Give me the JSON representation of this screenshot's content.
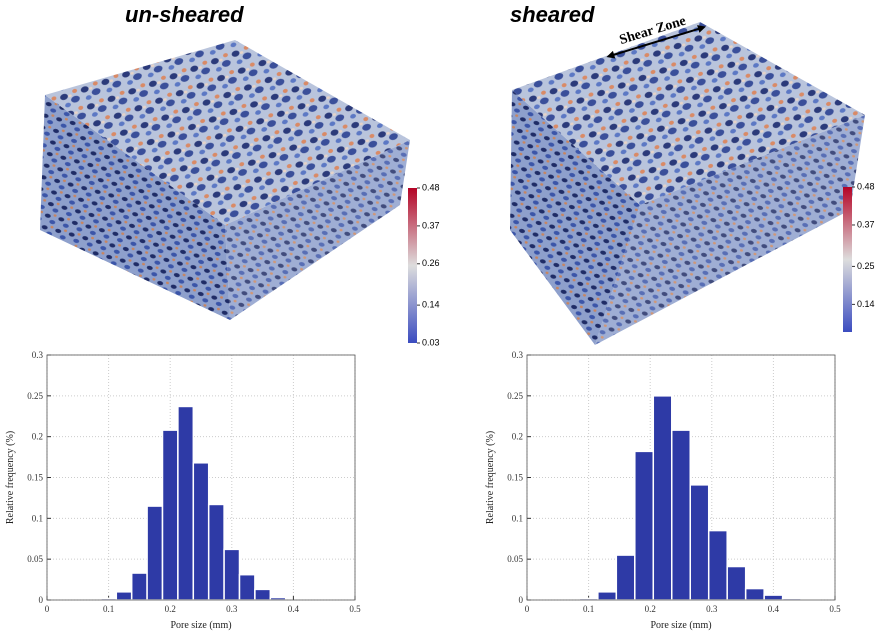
{
  "images": [
    {
      "title": "un-sheared",
      "colorbar": {
        "clim": [
          0.03,
          0.48
        ],
        "ticks": [
          0.03,
          0.14,
          0.26,
          0.37,
          0.48
        ]
      }
    },
    {
      "title": "sheared",
      "annotation": "Shear Zone",
      "colorbar": {
        "clim": [
          0.06,
          0.48
        ],
        "ticks": [
          0.14,
          0.25,
          0.37,
          0.48
        ]
      }
    }
  ],
  "chart_data": [
    {
      "type": "histogram",
      "xlabel": "Pore size (mm)",
      "ylabel": "Relative frequency (%)",
      "bins": [
        0.0875,
        0.1125,
        0.1375,
        0.1625,
        0.1875,
        0.2125,
        0.2375,
        0.2625,
        0.2875,
        0.3125,
        0.3375,
        0.3625,
        0.3875
      ],
      "values": [
        0.002,
        0.01,
        0.033,
        0.115,
        0.208,
        0.237,
        0.168,
        0.117,
        0.062,
        0.031,
        0.013,
        0.003
      ],
      "color": "#2e3aa6",
      "xlim": [
        0,
        0.5
      ],
      "ylim": [
        0,
        0.3
      ],
      "xticks": [
        0,
        0.1,
        0.2,
        0.3,
        0.4,
        0.5
      ],
      "yticks": [
        0,
        0.05,
        0.1,
        0.15,
        0.2,
        0.25,
        0.3
      ],
      "grid": true
    },
    {
      "type": "histogram",
      "xlabel": "Pore size (mm)",
      "ylabel": "Relative frequency (%)",
      "bins": [
        0.085,
        0.115,
        0.145,
        0.175,
        0.205,
        0.235,
        0.265,
        0.295,
        0.325,
        0.355,
        0.385,
        0.415,
        0.445,
        0.475
      ],
      "values": [
        0.002,
        0.01,
        0.055,
        0.182,
        0.25,
        0.208,
        0.141,
        0.085,
        0.041,
        0.014,
        0.006,
        0.002,
        0.001
      ],
      "color": "#2e3aa6",
      "xlim": [
        0,
        0.5
      ],
      "ylim": [
        0,
        0.3
      ],
      "xticks": [
        0,
        0.1,
        0.2,
        0.3,
        0.4,
        0.5
      ],
      "yticks": [
        0,
        0.05,
        0.1,
        0.15,
        0.2,
        0.25,
        0.3
      ],
      "grid": true
    }
  ]
}
